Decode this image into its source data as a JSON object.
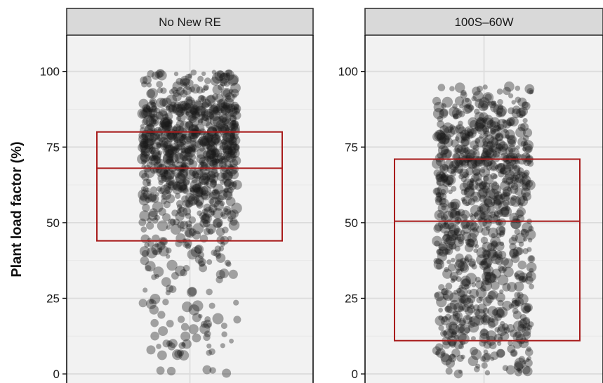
{
  "chart_data": {
    "type": "scatter",
    "subtype": "jitter-with-box",
    "ylabel": "Plant load factor (%)",
    "ylim": [
      -3,
      112
    ],
    "yticks": [
      0,
      25,
      50,
      75,
      100
    ],
    "grid": true,
    "colors": {
      "point": "#1a1a1a",
      "box": "#a81c1c",
      "strip": "#d9d9d9",
      "panel": "#f2f2f2"
    },
    "panels": [
      {
        "name": "No New RE",
        "box": {
          "q1": 44,
          "median": 68,
          "q3": 80
        },
        "density": [
          [
            0,
            1.4,
            0.6
          ],
          [
            5,
            10,
            0.5
          ],
          [
            10,
            20,
            0.45
          ],
          [
            20,
            30,
            0.3
          ],
          [
            30,
            40,
            0.5
          ],
          [
            40,
            50,
            1.0
          ],
          [
            50,
            60,
            1.5
          ],
          [
            60,
            70,
            2.6
          ],
          [
            70,
            80,
            4.0
          ],
          [
            80,
            90,
            3.2
          ],
          [
            90,
            100,
            1.3
          ]
        ],
        "n_points": 900
      },
      {
        "name": "100S–60W",
        "box": {
          "q1": 11,
          "median": 50.5,
          "q3": 71
        },
        "density": [
          [
            0,
            1.4,
            0.9
          ],
          [
            1.4,
            10,
            0.7
          ],
          [
            10,
            20,
            1.1
          ],
          [
            20,
            30,
            1.0
          ],
          [
            30,
            40,
            1.1
          ],
          [
            40,
            50,
            1.2
          ],
          [
            50,
            60,
            1.3
          ],
          [
            60,
            70,
            1.6
          ],
          [
            70,
            80,
            1.7
          ],
          [
            80,
            90,
            1.2
          ],
          [
            90,
            95,
            0.6
          ]
        ],
        "n_points": 900
      }
    ]
  }
}
